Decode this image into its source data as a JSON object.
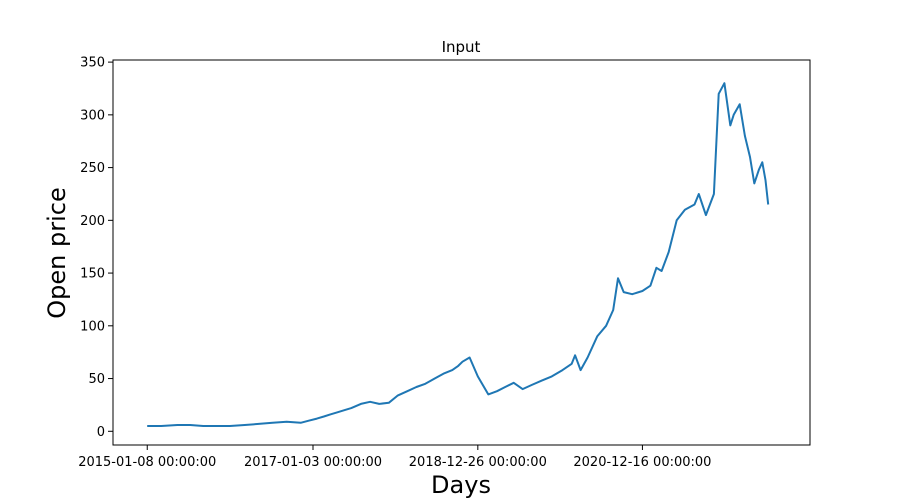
{
  "chart_data": {
    "type": "line",
    "title": "Input",
    "xlabel": "Days",
    "ylabel": "Open price",
    "grid": false,
    "legend": "none",
    "ylim": [
      -13,
      352
    ],
    "xlim": [
      "2014-08-11",
      "2022-12-20"
    ],
    "x_ticks": [
      "2015-01-08",
      "2017-01-03",
      "2018-12-26",
      "2020-12-16"
    ],
    "x_tick_labels": [
      "2015-01-08 00:00:00",
      "2017-01-03 00:00:00",
      "2018-12-26 00:00:00",
      "2020-12-16 00:00:00"
    ],
    "y_ticks": [
      0,
      50,
      100,
      150,
      200,
      250,
      300,
      350
    ],
    "series": [
      {
        "color": "#1f77b4",
        "x": [
          "2015-01-08",
          "2015-03-10",
          "2015-05-20",
          "2015-07-15",
          "2015-09-10",
          "2015-11-10",
          "2016-01-05",
          "2016-03-10",
          "2016-05-10",
          "2016-07-10",
          "2016-09-10",
          "2016-11-10",
          "2016-12-15",
          "2017-01-20",
          "2017-02-20",
          "2017-03-20",
          "2017-04-20",
          "2017-05-20",
          "2017-06-20",
          "2017-08-01",
          "2017-09-10",
          "2017-10-20",
          "2017-12-01",
          "2018-01-10",
          "2018-02-20",
          "2018-04-01",
          "2018-05-10",
          "2018-06-20",
          "2018-08-01",
          "2018-09-05",
          "2018-10-01",
          "2018-10-20",
          "2018-11-20",
          "2018-12-26",
          "2019-02-10",
          "2019-03-20",
          "2019-04-25",
          "2019-06-01",
          "2019-07-10",
          "2019-08-20",
          "2019-10-01",
          "2019-11-15",
          "2020-01-01",
          "2020-02-10",
          "2020-02-25",
          "2020-03-20",
          "2020-04-20",
          "2020-06-01",
          "2020-07-10",
          "2020-08-10",
          "2020-08-31",
          "2020-09-25",
          "2020-11-01",
          "2020-12-16",
          "2021-01-20",
          "2021-02-15",
          "2021-03-10",
          "2021-04-10",
          "2021-05-15",
          "2021-06-20",
          "2021-08-01",
          "2021-08-20",
          "2021-09-20",
          "2021-10-25",
          "2021-11-15",
          "2021-12-10",
          "2022-01-05",
          "2022-01-20",
          "2022-02-15",
          "2022-03-10",
          "2022-04-01",
          "2022-04-20",
          "2022-05-10",
          "2022-05-25",
          "2022-06-08",
          "2022-06-20"
        ],
        "y": [
          5,
          5,
          6,
          6,
          5,
          5,
          5,
          6,
          7,
          8,
          9,
          8,
          10,
          12,
          14,
          16,
          18,
          20,
          22,
          26,
          28,
          26,
          27,
          34,
          38,
          42,
          45,
          50,
          55,
          58,
          62,
          66,
          70,
          52,
          35,
          38,
          42,
          46,
          40,
          44,
          48,
          52,
          58,
          64,
          72,
          58,
          70,
          90,
          100,
          115,
          145,
          132,
          130,
          133,
          138,
          155,
          152,
          170,
          200,
          210,
          215,
          225,
          205,
          225,
          320,
          330,
          290,
          300,
          310,
          280,
          260,
          235,
          248,
          255,
          238,
          215
        ]
      }
    ]
  }
}
